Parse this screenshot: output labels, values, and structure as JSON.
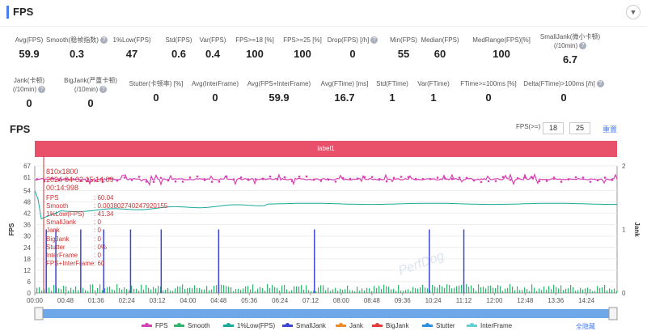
{
  "header": {
    "title": "FPS",
    "toggle_icon": "chevron-down-icon"
  },
  "metrics": [
    {
      "label": "Avg(FPS)",
      "value": "59.9",
      "help": false
    },
    {
      "label": "Smooth(稳帧指数)",
      "value": "0.3",
      "help": true
    },
    {
      "label": "1%Low(FPS)",
      "value": "47",
      "help": false
    },
    {
      "label": "Std(FPS)",
      "value": "0.6",
      "help": false
    },
    {
      "label": "Var(FPS)",
      "value": "0.4",
      "help": false
    },
    {
      "label": "FPS>=18 [%]",
      "value": "100",
      "help": false
    },
    {
      "label": "FPS>=25 [%]",
      "value": "100",
      "help": false
    },
    {
      "label": "Drop(FPS) [/h]",
      "value": "0",
      "help": true
    },
    {
      "label": "Min(FPS)",
      "value": "55",
      "help": false
    },
    {
      "label": "Median(FPS)",
      "value": "60",
      "help": false
    },
    {
      "label": "MedRange(FPS)[%]",
      "value": "100",
      "help": false
    },
    {
      "label": "SmallJank(微小卡顿)",
      "label2": "(/10min)",
      "value": "6.7",
      "help": true
    },
    {
      "label": "Jank(卡顿)",
      "label2": "(/10min)",
      "value": "0",
      "help": true
    },
    {
      "label": "BigJank(严重卡顿)",
      "label2": "(/10min)",
      "value": "0",
      "help": true
    },
    {
      "label": "Stutter(卡顿率) [%]",
      "value": "0",
      "help": false
    },
    {
      "label": "Avg(InterFrame)",
      "value": "0",
      "help": false
    },
    {
      "label": "Avg(FPS+InterFrame)",
      "value": "59.9",
      "help": false
    },
    {
      "label": "Avg(FTime) [ms]",
      "value": "16.7",
      "help": false
    },
    {
      "label": "Std(FTime)",
      "value": "1",
      "help": false
    },
    {
      "label": "Var(FTime)",
      "value": "1",
      "help": false
    },
    {
      "label": "FTime>=100ms [%]",
      "value": "0",
      "help": false
    },
    {
      "label": "Delta(FTime)>100ms [/h]",
      "value": "0",
      "help": true
    }
  ],
  "chart_section": {
    "title": "FPS",
    "fps_label": "FPS(>=)",
    "fps_val1": "18",
    "fps_val2": "25",
    "reset_label": "重置",
    "band_label": "label1",
    "hide_all_label": "全隐藏"
  },
  "tooltip": {
    "resolution": "810x1800",
    "timestamp": "2024-04-02 15:14:09",
    "elapsed": "00:14:998",
    "rows": [
      {
        "k": "FPS",
        "v": "60.04"
      },
      {
        "k": "Smooth",
        "v": "0.003802740247920155"
      },
      {
        "k": "1%Low(FPS)",
        "v": "41.34"
      },
      {
        "k": "SmallJank",
        "v": "0"
      },
      {
        "k": "Jank",
        "v": "0"
      },
      {
        "k": "BigJank",
        "v": "0"
      },
      {
        "k": "Stutter",
        "v": "0%"
      },
      {
        "k": "InterFrame",
        "v": "0"
      },
      {
        "k": "FPS+InterFrame",
        "v": "60"
      }
    ]
  },
  "watermark": "PerfDog",
  "chart_data": {
    "type": "line",
    "x_ticks": [
      "00:00",
      "00:48",
      "01:36",
      "02:24",
      "03:12",
      "04:00",
      "04:48",
      "05:36",
      "06:24",
      "07:12",
      "08:00",
      "08:48",
      "09:36",
      "10:24",
      "11:12",
      "12:00",
      "12:48",
      "13:36",
      "14:24"
    ],
    "y_left_ticks": [
      0,
      6,
      12,
      18,
      24,
      30,
      36,
      42,
      48,
      54,
      61,
      67
    ],
    "y_right_ticks": [
      0,
      1,
      2
    ],
    "ylabel_left": "FPS",
    "ylabel_right": "Jank",
    "series": [
      {
        "name": "FPS",
        "color": "#d63fb3",
        "approx_value": 60
      },
      {
        "name": "Smooth",
        "color": "#2db66b"
      },
      {
        "name": "1%Low(FPS)",
        "color": "#1aa89a",
        "approx_value": 47
      },
      {
        "name": "SmallJank",
        "color": "#3b46d6",
        "spikes_at_min": [
          0.3,
          0.55,
          1.2,
          1.8,
          2.5,
          3.3,
          4.8,
          7.3,
          10.3,
          11.2
        ]
      },
      {
        "name": "Jank",
        "color": "#f08a24"
      },
      {
        "name": "BigJank",
        "color": "#e23b3b"
      },
      {
        "name": "Stutter",
        "color": "#2f8fe0"
      },
      {
        "name": "InterFrame",
        "color": "#5fd0d6"
      }
    ]
  }
}
